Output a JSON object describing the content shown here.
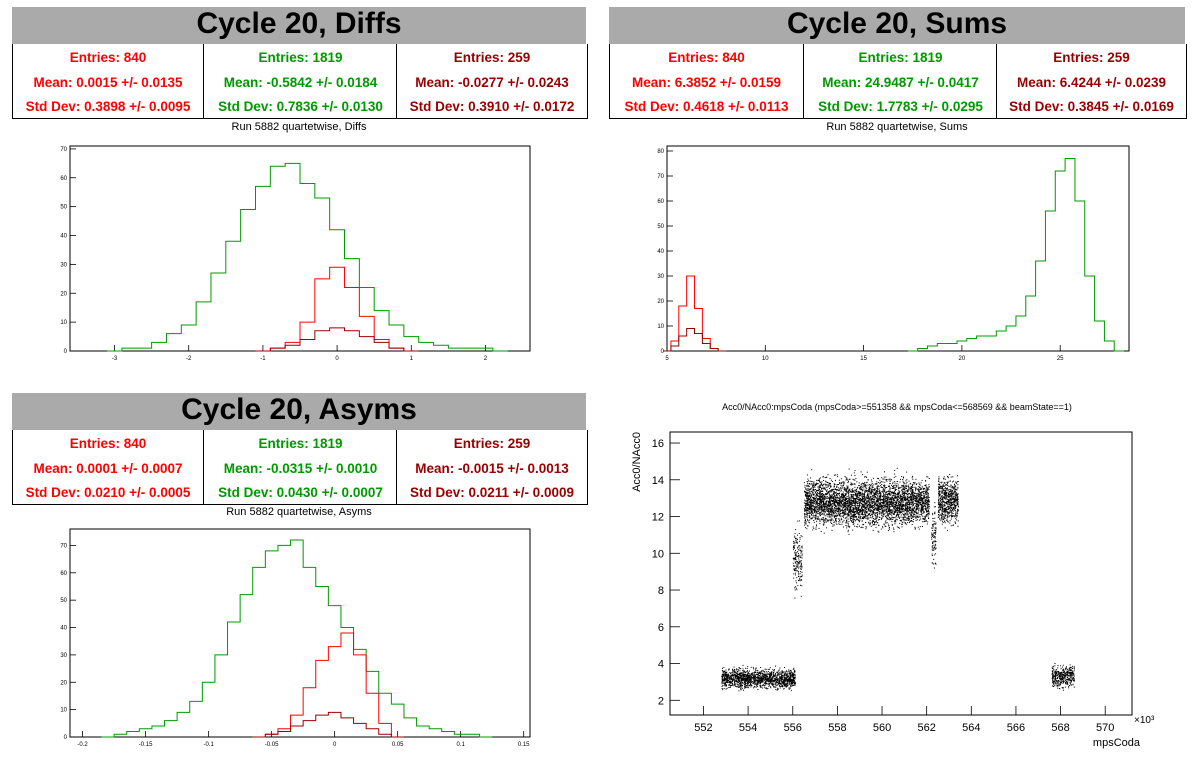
{
  "colors": {
    "red": "#ff0000",
    "green": "#009900",
    "darkred": "#990000",
    "black": "#000000",
    "titlebg": "#aaaaaa"
  },
  "panels": {
    "diffs": {
      "title": "Cycle 20, Diffs",
      "subtitle": "Run 5882 quartetwise, Diffs",
      "stats": [
        {
          "entries": "Entries: 840",
          "mean": "Mean: 0.0015 +/- 0.0135",
          "std": "Std Dev: 0.3898 +/- 0.0095"
        },
        {
          "entries": "Entries: 1819",
          "mean": "Mean: -0.5842 +/- 0.0184",
          "std": "Std Dev: 0.7836 +/- 0.0130"
        },
        {
          "entries": "Entries: 259",
          "mean": "Mean: -0.0277 +/- 0.0243",
          "std": "Std Dev: 0.3910 +/- 0.0172"
        }
      ]
    },
    "sums": {
      "title": "Cycle 20, Sums",
      "subtitle": "Run 5882 quartetwise, Sums",
      "stats": [
        {
          "entries": "Entries: 840",
          "mean": "Mean: 6.3852 +/- 0.0159",
          "std": "Std Dev: 0.4618 +/- 0.0113"
        },
        {
          "entries": "Entries: 1819",
          "mean": "Mean: 24.9487 +/- 0.0417",
          "std": "Std Dev: 1.7783 +/- 0.0295"
        },
        {
          "entries": "Entries: 259",
          "mean": "Mean: 6.4244 +/- 0.0239",
          "std": "Std Dev: 0.3845 +/- 0.0169"
        }
      ]
    },
    "asyms": {
      "title": "Cycle 20, Asyms",
      "subtitle": "Run 5882 quartetwise, Asyms",
      "stats": [
        {
          "entries": "Entries: 840",
          "mean": "Mean: 0.0001 +/- 0.0007",
          "std": "Std Dev: 0.0210 +/- 0.0005"
        },
        {
          "entries": "Entries: 1819",
          "mean": "Mean: -0.0315 +/- 0.0010",
          "std": "Std Dev: 0.0430 +/- 0.0007"
        },
        {
          "entries": "Entries: 259",
          "mean": "Mean: -0.0015 +/- 0.0013",
          "std": "Std Dev: 0.0211 +/- 0.0009"
        }
      ]
    },
    "scatter": {
      "title": "Acc0/NAcc0:mpsCoda (mpsCoda>=551358 && mpsCoda<=568569 && beamState==1)",
      "xlabel": "mpsCoda",
      "ylabel": "Acc0/NAcc0",
      "exponent": "×10³"
    }
  },
  "chart_data": [
    {
      "type": "line",
      "subtype": "step-histogram",
      "title": "Run 5882 quartetwise, Diffs",
      "xlim": [
        -3.6,
        2.6
      ],
      "ylim": [
        0,
        71
      ],
      "x_ticks": [
        -3,
        -2,
        -1,
        0,
        1,
        2
      ],
      "y_ticks": [
        0,
        10,
        20,
        30,
        40,
        50,
        60,
        70
      ],
      "series": [
        {
          "color": "#009900",
          "x": [
            -3.0,
            -2.8,
            -2.6,
            -2.4,
            -2.2,
            -2.0,
            -1.8,
            -1.6,
            -1.4,
            -1.2,
            -1.0,
            -0.8,
            -0.6,
            -0.4,
            -0.2,
            0.0,
            0.2,
            0.4,
            0.6,
            0.8,
            1.0,
            1.2,
            1.4,
            1.6,
            1.8,
            2.0,
            2.2
          ],
          "values": [
            0,
            1,
            1,
            3,
            6,
            9,
            17,
            27,
            38,
            49,
            57,
            64,
            65,
            58,
            53,
            42,
            32,
            22,
            14,
            9,
            5,
            3,
            2,
            1,
            1,
            1,
            0
          ]
        },
        {
          "color": "#ff0000",
          "x": [
            -1.0,
            -0.8,
            -0.6,
            -0.4,
            -0.2,
            0.0,
            0.2,
            0.4,
            0.6,
            0.8,
            1.0
          ],
          "values": [
            0,
            1,
            3,
            10,
            25,
            29,
            22,
            12,
            4,
            1,
            0
          ]
        },
        {
          "color": "#990000",
          "x": [
            -1.0,
            -0.8,
            -0.6,
            -0.4,
            -0.2,
            0.0,
            0.2,
            0.4,
            0.6,
            0.8,
            1.0
          ],
          "values": [
            0,
            1,
            2,
            4,
            7,
            8,
            7,
            5,
            3,
            1,
            0
          ]
        }
      ]
    },
    {
      "type": "line",
      "subtype": "step-histogram",
      "title": "Run 5882 quartetwise, Sums",
      "xlim": [
        5,
        28.5
      ],
      "ylim": [
        0,
        82
      ],
      "x_ticks": [
        5,
        10,
        15,
        20,
        25
      ],
      "y_ticks": [
        0,
        10,
        20,
        30,
        40,
        50,
        60,
        70,
        80
      ],
      "series": [
        {
          "color": "#009900",
          "x": [
            17.5,
            18.0,
            18.5,
            19.0,
            19.5,
            20.0,
            20.5,
            21.0,
            21.5,
            22.0,
            22.5,
            23.0,
            23.5,
            24.0,
            24.5,
            25.0,
            25.5,
            26.0,
            26.5,
            27.0,
            27.5,
            28.0
          ],
          "values": [
            0,
            1,
            2,
            3,
            3,
            4,
            5,
            6,
            6,
            8,
            10,
            14,
            22,
            36,
            56,
            72,
            77,
            60,
            30,
            12,
            4,
            0
          ]
        },
        {
          "color": "#ff0000",
          "x": [
            5.0,
            5.4,
            5.8,
            6.2,
            6.6,
            7.0,
            7.4,
            7.8
          ],
          "values": [
            0,
            4,
            18,
            30,
            17,
            5,
            1,
            0
          ]
        },
        {
          "color": "#990000",
          "x": [
            5.0,
            5.4,
            5.8,
            6.2,
            6.6,
            7.0,
            7.4,
            7.8
          ],
          "values": [
            0,
            2,
            6,
            9,
            7,
            3,
            1,
            0
          ]
        }
      ]
    },
    {
      "type": "line",
      "subtype": "step-histogram",
      "title": "Run 5882 quartetwise, Asyms",
      "xlim": [
        -0.21,
        0.155
      ],
      "ylim": [
        0,
        76
      ],
      "x_ticks": [
        -0.2,
        -0.15,
        -0.1,
        -0.05,
        0,
        0.05,
        0.1,
        0.15
      ],
      "y_ticks": [
        0,
        10,
        20,
        30,
        40,
        50,
        60,
        70
      ],
      "series": [
        {
          "color": "#009900",
          "x": [
            -0.18,
            -0.17,
            -0.16,
            -0.15,
            -0.14,
            -0.13,
            -0.12,
            -0.11,
            -0.1,
            -0.09,
            -0.08,
            -0.07,
            -0.06,
            -0.05,
            -0.04,
            -0.03,
            -0.02,
            -0.01,
            0.0,
            0.01,
            0.02,
            0.03,
            0.04,
            0.05,
            0.06,
            0.07,
            0.08,
            0.09,
            0.1,
            0.11,
            0.12
          ],
          "values": [
            0,
            1,
            2,
            3,
            4,
            6,
            9,
            13,
            20,
            30,
            42,
            52,
            62,
            68,
            70,
            72,
            62,
            55,
            48,
            40,
            32,
            24,
            16,
            12,
            7,
            4,
            3,
            2,
            1,
            1,
            0
          ]
        },
        {
          "color": "#ff0000",
          "x": [
            -0.06,
            -0.05,
            -0.04,
            -0.03,
            -0.02,
            -0.01,
            0.0,
            0.01,
            0.02,
            0.03,
            0.04,
            0.05
          ],
          "values": [
            0,
            1,
            3,
            8,
            18,
            28,
            33,
            38,
            30,
            16,
            5,
            0
          ]
        },
        {
          "color": "#990000",
          "x": [
            -0.06,
            -0.05,
            -0.04,
            -0.03,
            -0.02,
            -0.01,
            0.0,
            0.01,
            0.02,
            0.03,
            0.04,
            0.05
          ],
          "values": [
            0,
            1,
            2,
            4,
            6,
            8,
            9,
            7,
            5,
            3,
            1,
            0
          ]
        }
      ]
    },
    {
      "type": "scatter",
      "title": "Acc0/NAcc0:mpsCoda (mpsCoda>=551358 && mpsCoda<=568569 && beamState==1)",
      "xlabel": "mpsCoda",
      "ylabel": "Acc0/NAcc0",
      "x_unit": "×10³",
      "xlim": [
        550.5,
        571.2
      ],
      "ylim": [
        1.2,
        16.6
      ],
      "x_ticks": [
        552,
        554,
        556,
        558,
        560,
        562,
        564,
        566,
        568,
        570
      ],
      "y_ticks": [
        2,
        4,
        6,
        8,
        10,
        12,
        14,
        16
      ],
      "clusters": [
        {
          "x_range": [
            552.8,
            556.1
          ],
          "y_center": 3.2,
          "y_spread": 0.45,
          "count": 1500
        },
        {
          "x_range": [
            556.0,
            556.4
          ],
          "y_center": 9.6,
          "y_spread": 1.4,
          "count": 180
        },
        {
          "x_range": [
            556.5,
            562.1
          ],
          "y_center": 12.8,
          "y_spread": 1.1,
          "count": 4200
        },
        {
          "x_range": [
            562.2,
            562.4
          ],
          "y_center": 11.0,
          "y_spread": 1.6,
          "count": 90
        },
        {
          "x_range": [
            562.5,
            563.4
          ],
          "y_center": 12.9,
          "y_spread": 1.1,
          "count": 650
        },
        {
          "x_range": [
            567.6,
            568.6
          ],
          "y_center": 3.3,
          "y_spread": 0.5,
          "count": 380
        }
      ],
      "marker_color": "#000000"
    }
  ]
}
